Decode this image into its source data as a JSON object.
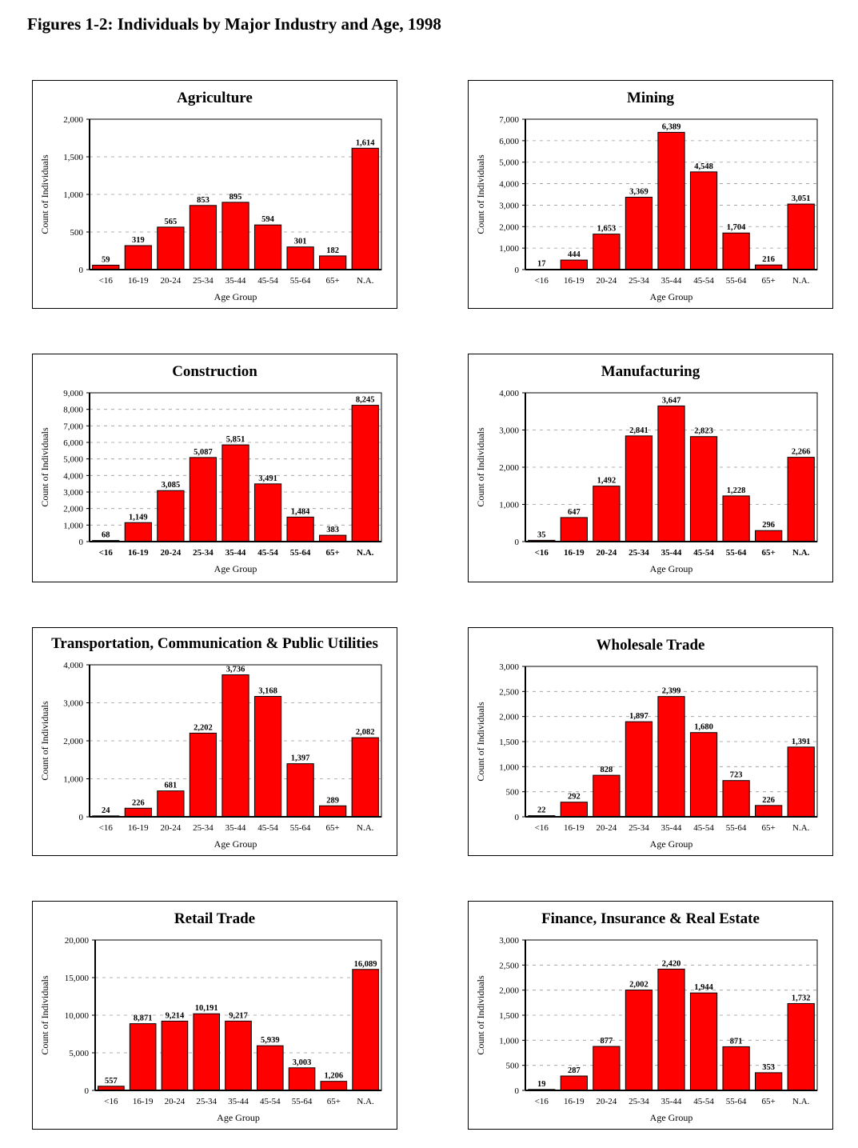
{
  "page_title": "Figures 1-2:  Individuals by Major Industry and Age, 1998",
  "colors": {
    "bar": "#ff0000",
    "bar_border": "#000000",
    "grid": "#999999"
  },
  "chart_data": [
    {
      "type": "bar",
      "title": "Agriculture",
      "xlabel": "Age Group",
      "ylabel": "Count of Individuals",
      "categories": [
        "<16",
        "16-19",
        "20-24",
        "25-34",
        "35-44",
        "45-54",
        "55-64",
        "65+",
        "N.A."
      ],
      "values": [
        59,
        319,
        565,
        853,
        895,
        594,
        301,
        182,
        1614
      ],
      "value_labels": [
        "59",
        "319",
        "565",
        "853",
        "895",
        "594",
        "301",
        "182",
        "1,614"
      ],
      "ylim": [
        0,
        2000
      ],
      "yticks": [
        0,
        500,
        1000,
        1500,
        2000
      ],
      "ytick_labels": [
        "0",
        "500",
        "1,000",
        "1,500",
        "2,000"
      ],
      "grid": true,
      "legend": false,
      "bold_categories": false
    },
    {
      "type": "bar",
      "title": "Mining",
      "xlabel": "Age Group",
      "ylabel": "Count of Individuals",
      "categories": [
        "<16",
        "16-19",
        "20-24",
        "25-34",
        "35-44",
        "45-54",
        "55-64",
        "65+",
        "N.A."
      ],
      "values": [
        17,
        444,
        1653,
        3369,
        6389,
        4548,
        1704,
        216,
        3051
      ],
      "value_labels": [
        "17",
        "444",
        "1,653",
        "3,369",
        "6,389",
        "4,548",
        "1,704",
        "216",
        "3,051"
      ],
      "ylim": [
        0,
        7000
      ],
      "yticks": [
        0,
        1000,
        2000,
        3000,
        4000,
        5000,
        6000,
        7000
      ],
      "ytick_labels": [
        "0",
        "1,000",
        "2,000",
        "3,000",
        "4,000",
        "5,000",
        "6,000",
        "7,000"
      ],
      "grid": true,
      "legend": false,
      "bold_categories": false
    },
    {
      "type": "bar",
      "title": "Construction",
      "xlabel": "Age Group",
      "ylabel": "Count of Individuals",
      "categories": [
        "<16",
        "16-19",
        "20-24",
        "25-34",
        "35-44",
        "45-54",
        "55-64",
        "65+",
        "N.A."
      ],
      "values": [
        68,
        1149,
        3085,
        5087,
        5851,
        3491,
        1484,
        383,
        8245
      ],
      "value_labels": [
        "68",
        "1,149",
        "3,085",
        "5,087",
        "5,851",
        "3,491",
        "1,484",
        "383",
        "8,245"
      ],
      "ylim": [
        0,
        9000
      ],
      "yticks": [
        0,
        1000,
        2000,
        3000,
        4000,
        5000,
        6000,
        7000,
        8000,
        9000
      ],
      "ytick_labels": [
        "0",
        "1,000",
        "2,000",
        "3,000",
        "4,000",
        "5,000",
        "6,000",
        "7,000",
        "8,000",
        "9,000"
      ],
      "grid": true,
      "legend": false,
      "bold_categories": true
    },
    {
      "type": "bar",
      "title": "Manufacturing",
      "xlabel": "Age Group",
      "ylabel": "Count of Individuals",
      "categories": [
        "<16",
        "16-19",
        "20-24",
        "25-34",
        "35-44",
        "45-54",
        "55-64",
        "65+",
        "N.A."
      ],
      "values": [
        35,
        647,
        1492,
        2841,
        3647,
        2823,
        1228,
        296,
        2266
      ],
      "value_labels": [
        "35",
        "647",
        "1,492",
        "2,841",
        "3,647",
        "2,823",
        "1,228",
        "296",
        "2,266"
      ],
      "ylim": [
        0,
        4000
      ],
      "yticks": [
        0,
        1000,
        2000,
        3000,
        4000
      ],
      "ytick_labels": [
        "0",
        "1,000",
        "2,000",
        "3,000",
        "4,000"
      ],
      "grid": true,
      "legend": false,
      "bold_categories": true
    },
    {
      "type": "bar",
      "title": "Transportation, Communication & Public Utilities",
      "xlabel": "Age Group",
      "ylabel": "Count of Individuals",
      "categories": [
        "<16",
        "16-19",
        "20-24",
        "25-34",
        "35-44",
        "45-54",
        "55-64",
        "65+",
        "N.A."
      ],
      "values": [
        24,
        226,
        681,
        2202,
        3736,
        3168,
        1397,
        289,
        2082
      ],
      "value_labels": [
        "24",
        "226",
        "681",
        "2,202",
        "3,736",
        "3,168",
        "1,397",
        "289",
        "2,082"
      ],
      "ylim": [
        0,
        4000
      ],
      "yticks": [
        0,
        1000,
        2000,
        3000,
        4000
      ],
      "ytick_labels": [
        "0",
        "1,000",
        "2,000",
        "3,000",
        "4,000"
      ],
      "grid": true,
      "legend": false,
      "bold_categories": false
    },
    {
      "type": "bar",
      "title": "Wholesale Trade",
      "xlabel": "Age Group",
      "ylabel": "Count of Individuals",
      "categories": [
        "<16",
        "16-19",
        "20-24",
        "25-34",
        "35-44",
        "45-54",
        "55-64",
        "65+",
        "N.A."
      ],
      "values": [
        22,
        292,
        828,
        1897,
        2399,
        1680,
        723,
        226,
        1391
      ],
      "value_labels": [
        "22",
        "292",
        "828",
        "1,897",
        "2,399",
        "1,680",
        "723",
        "226",
        "1,391"
      ],
      "ylim": [
        0,
        3000
      ],
      "yticks": [
        0,
        500,
        1000,
        1500,
        2000,
        2500,
        3000
      ],
      "ytick_labels": [
        "0",
        "500",
        "1,000",
        "1,500",
        "2,000",
        "2,500",
        "3,000"
      ],
      "grid": true,
      "legend": false,
      "bold_categories": false
    },
    {
      "type": "bar",
      "title": "Retail Trade",
      "xlabel": "Age Group",
      "ylabel": "Count of Individuals",
      "categories": [
        "<16",
        "16-19",
        "20-24",
        "25-34",
        "35-44",
        "45-54",
        "55-64",
        "65+",
        "N.A."
      ],
      "values": [
        557,
        8871,
        9214,
        10191,
        9217,
        5939,
        3003,
        1206,
        16089
      ],
      "value_labels": [
        "557",
        "8,871",
        "9,214",
        "10,191",
        "9,217",
        "5,939",
        "3,003",
        "1,206",
        "16,089"
      ],
      "ylim": [
        0,
        20000
      ],
      "yticks": [
        0,
        5000,
        10000,
        15000,
        20000
      ],
      "ytick_labels": [
        "0",
        "5,000",
        "10,000",
        "15,000",
        "20,000"
      ],
      "grid": true,
      "legend": false,
      "bold_categories": false
    },
    {
      "type": "bar",
      "title": "Finance, Insurance & Real Estate",
      "xlabel": "Age Group",
      "ylabel": "Count of Individuals",
      "categories": [
        "<16",
        "16-19",
        "20-24",
        "25-34",
        "35-44",
        "45-54",
        "55-64",
        "65+",
        "N.A."
      ],
      "values": [
        19,
        287,
        877,
        2002,
        2420,
        1944,
        871,
        353,
        1732
      ],
      "value_labels": [
        "19",
        "287",
        "877",
        "2,002",
        "2,420",
        "1,944",
        "871",
        "353",
        "1,732"
      ],
      "ylim": [
        0,
        3000
      ],
      "yticks": [
        0,
        500,
        1000,
        1500,
        2000,
        2500,
        3000
      ],
      "ytick_labels": [
        "0",
        "500",
        "1,000",
        "1,500",
        "2,000",
        "2,500",
        "3,000"
      ],
      "grid": true,
      "legend": false,
      "bold_categories": false
    }
  ]
}
